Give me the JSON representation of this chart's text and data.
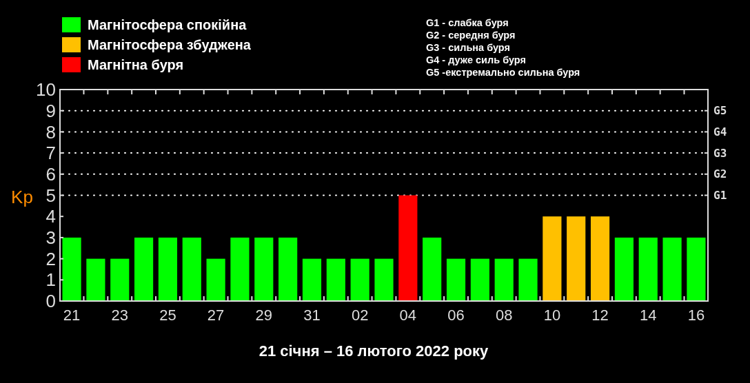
{
  "chart_data": {
    "type": "bar",
    "stacked": true,
    "categories": [
      "21",
      null,
      "23",
      null,
      "25",
      null,
      "27",
      null,
      "29",
      null,
      "31",
      null,
      "02",
      null,
      "04",
      null,
      "06",
      null,
      "08",
      null,
      "10",
      null,
      "12",
      null,
      "14",
      null,
      "16"
    ],
    "series": [
      {
        "name": "Магнітосфера спокійна",
        "color": "#00ff00",
        "values": [
          3,
          2,
          2,
          3,
          3,
          3,
          2,
          3,
          3,
          3,
          2,
          2,
          2,
          2,
          null,
          3,
          2,
          2,
          2,
          2,
          null,
          null,
          null,
          3,
          3,
          3,
          3
        ]
      },
      {
        "name": "Магнітосфера збуджена",
        "color": "#ffc000",
        "values": [
          null,
          null,
          null,
          null,
          null,
          null,
          null,
          null,
          null,
          null,
          null,
          null,
          null,
          null,
          null,
          null,
          null,
          null,
          null,
          null,
          4,
          4,
          4,
          null,
          null,
          null,
          null
        ]
      },
      {
        "name": "Магнітна буря",
        "color": "#ff0000",
        "values": [
          null,
          null,
          null,
          null,
          null,
          null,
          null,
          null,
          null,
          null,
          null,
          null,
          null,
          null,
          5,
          null,
          null,
          null,
          null,
          null,
          null,
          null,
          null,
          null,
          null,
          null,
          null
        ]
      }
    ],
    "ylim": [
      0,
      10
    ],
    "yticks": [
      0,
      1,
      2,
      3,
      4,
      5,
      6,
      7,
      8,
      9,
      10
    ],
    "ylabel": "Kp",
    "xlabel": "21 січня – 16 лютого 2022 року",
    "ref_lines": [
      {
        "axis": "y",
        "value": 5,
        "label": "G1",
        "line_style": "dotted",
        "color": "#ffffff"
      },
      {
        "axis": "y",
        "value": 6,
        "label": "G2",
        "line_style": "dotted",
        "color": "#ffffff"
      },
      {
        "axis": "y",
        "value": 7,
        "label": "G3",
        "line_style": "dotted",
        "color": "#ffffff"
      },
      {
        "axis": "y",
        "value": 8,
        "label": "G4",
        "line_style": "dotted",
        "color": "#ffffff"
      },
      {
        "axis": "y",
        "value": 9,
        "label": "G5",
        "line_style": "dotted",
        "color": "#ffffff"
      }
    ],
    "annotations": [
      "G1 - слабка буря",
      "G2 - середня буря",
      "G3 - сильна буря",
      "G4 - дуже силь буря",
      "G5 -екстремально сильна буря"
    ],
    "legend": "top left"
  }
}
